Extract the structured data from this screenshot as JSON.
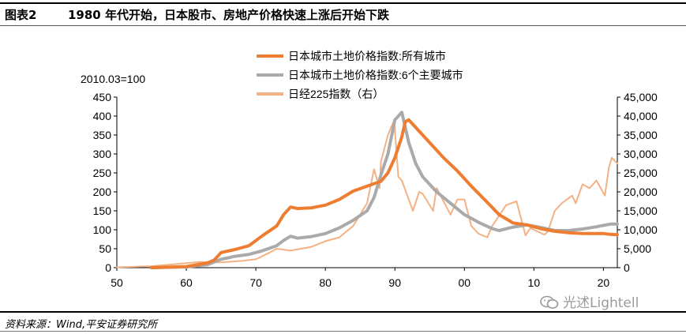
{
  "header": {
    "figure_label": "图表2",
    "figure_title": "1980 年代开始，日本股市、房地产价格快速上涨后开始下跌"
  },
  "source": "资料来源：Wind,平安证券研究所",
  "watermark": "光述Lightell",
  "chart_data": {
    "type": "line",
    "title": "",
    "xlabel": "",
    "ylabel": "",
    "y_note": "2010.03=100",
    "x_range": [
      1950,
      2022
    ],
    "x_tick_labels": [
      "50",
      "60",
      "70",
      "80",
      "90",
      "00",
      "10",
      "20"
    ],
    "x_ticks": [
      1950,
      1960,
      1970,
      1980,
      1990,
      2000,
      2010,
      2020
    ],
    "y_left": {
      "range": [
        0,
        450
      ],
      "ticks": [
        0,
        50,
        100,
        150,
        200,
        250,
        300,
        350,
        400,
        450
      ]
    },
    "y_right": {
      "range": [
        0,
        45000
      ],
      "ticks": [
        "0",
        "5,000",
        "10,000",
        "15,000",
        "20,000",
        "25,000",
        "30,000",
        "35,000",
        "40,000",
        "45,000"
      ]
    },
    "legend_position": "top-center",
    "grid": false,
    "series": [
      {
        "name": "日本城市土地价格指数:所有城市",
        "axis": "left",
        "color": "#ed7d31",
        "x": [
          1955,
          1960,
          1963,
          1964,
          1965,
          1967,
          1969,
          1971,
          1973,
          1974,
          1975,
          1976,
          1978,
          1980,
          1982,
          1984,
          1986,
          1988,
          1989,
          1990,
          1991,
          1991.5,
          1992,
          1993,
          1995,
          1997,
          1999,
          2001,
          2003,
          2005,
          2007,
          2009,
          2011,
          2013,
          2015,
          2017,
          2019,
          2020,
          2021,
          2022
        ],
        "y": [
          0,
          3,
          12,
          20,
          40,
          48,
          58,
          85,
          110,
          140,
          160,
          156,
          158,
          165,
          180,
          202,
          215,
          228,
          250,
          290,
          345,
          385,
          390,
          370,
          330,
          290,
          255,
          215,
          178,
          140,
          118,
          113,
          103,
          96,
          92,
          90,
          90,
          90,
          88,
          87
        ]
      },
      {
        "name": "日本城市土地价格指数:6个主要城市",
        "axis": "left",
        "color": "#aaaaaa",
        "x": [
          1955,
          1960,
          1963,
          1965,
          1967,
          1969,
          1971,
          1973,
          1974,
          1975,
          1976,
          1978,
          1980,
          1982,
          1984,
          1986,
          1987,
          1988,
          1989,
          1990,
          1991,
          1992,
          1993,
          1994,
          1996,
          1998,
          2000,
          2002,
          2004,
          2005,
          2007,
          2009,
          2011,
          2013,
          2015,
          2017,
          2019,
          2021,
          2022
        ],
        "y": [
          0,
          2,
          8,
          22,
          30,
          35,
          45,
          58,
          72,
          83,
          78,
          82,
          90,
          105,
          125,
          150,
          185,
          245,
          300,
          390,
          410,
          330,
          275,
          240,
          200,
          170,
          140,
          120,
          103,
          98,
          107,
          113,
          106,
          98,
          98,
          102,
          108,
          115,
          115
        ]
      },
      {
        "name": "日经225指数（右）",
        "axis": "right",
        "color": "#f4b183",
        "x": [
          1950,
          1955,
          1960,
          1962,
          1965,
          1968,
          1970,
          1972,
          1973,
          1975,
          1978,
          1980,
          1982,
          1984,
          1986,
          1987,
          1987.8,
          1988,
          1989,
          1989.9,
          1990.5,
          1991,
          1992.6,
          1993.5,
          1994,
          1995.5,
          1996,
          1998,
          1999,
          2000,
          2001,
          2002,
          2003.3,
          2004,
          2006,
          2007.5,
          2008.8,
          2009.5,
          2010,
          2011.5,
          2012,
          2013,
          2014,
          2015.5,
          2016,
          2017,
          2018,
          2019,
          2020.2,
          2020.8,
          2021.2,
          2022
        ],
        "y": [
          100,
          400,
          1200,
          1500,
          1400,
          1800,
          2200,
          4000,
          5000,
          4500,
          5500,
          7000,
          8000,
          11000,
          17000,
          26000,
          21000,
          28000,
          35000,
          38900,
          24000,
          23000,
          15000,
          20000,
          19500,
          15000,
          21000,
          14000,
          18000,
          18000,
          11000,
          9000,
          8000,
          11000,
          16500,
          17500,
          8500,
          10500,
          10000,
          8700,
          9500,
          15000,
          17000,
          19000,
          17000,
          22000,
          21000,
          23000,
          19000,
          26500,
          29000,
          27500
        ]
      }
    ]
  }
}
